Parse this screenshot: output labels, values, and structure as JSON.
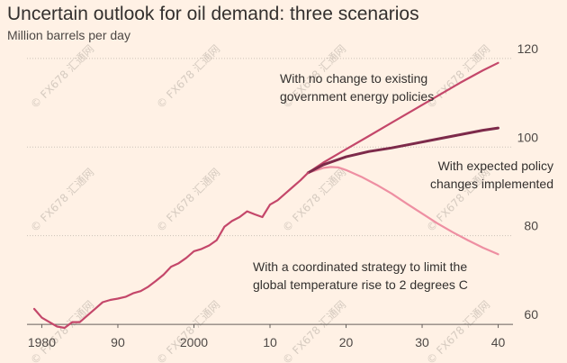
{
  "chart_data": {
    "type": "line",
    "title": "Uncertain outlook for oil demand: three scenarios",
    "ylabel": "Million barrels per day",
    "xlabel": "",
    "xlim": [
      1979,
      2041
    ],
    "ylim": [
      59,
      122
    ],
    "y_ticks": [
      {
        "value": 60,
        "label": "60"
      },
      {
        "value": 80,
        "label": "80"
      },
      {
        "value": 100,
        "label": "100"
      },
      {
        "value": 120,
        "label": "120"
      }
    ],
    "x_ticks": [
      {
        "value": 1980,
        "label": "1980"
      },
      {
        "value": 1990,
        "label": "90"
      },
      {
        "value": 2000,
        "label": "2000"
      },
      {
        "value": 2010,
        "label": "10"
      },
      {
        "value": 2020,
        "label": "20"
      },
      {
        "value": 2030,
        "label": "30"
      },
      {
        "value": 2040,
        "label": "40"
      }
    ],
    "grid": true,
    "series": [
      {
        "name": "",
        "color": "#c4476a",
        "x": [
          1979,
          1980,
          1981,
          1982,
          1983,
          1984,
          1985,
          1986,
          1987,
          1988,
          1989,
          1990,
          1991,
          1992,
          1993,
          1994,
          1995,
          1996,
          1997,
          1998,
          1999,
          2000,
          2001,
          2002,
          2003,
          2004,
          2005,
          2006,
          2007,
          2008,
          2009,
          2010,
          2011,
          2012,
          2013,
          2014,
          2015
        ],
        "y": [
          63.5,
          61.5,
          60.5,
          59.5,
          59.2,
          60.5,
          60.5,
          62,
          63.5,
          65,
          65.5,
          65.8,
          66.2,
          67,
          67.5,
          68.5,
          69.8,
          71.2,
          73,
          73.8,
          75,
          76.5,
          77,
          77.8,
          79,
          82,
          83.3,
          84.2,
          85.5,
          84.8,
          84.2,
          87,
          88,
          89.5,
          91,
          92.5,
          94.2
        ]
      },
      {
        "name": "",
        "color": "#c4476a",
        "x": [
          2015,
          2017,
          2020,
          2023,
          2026,
          2029,
          2032,
          2035,
          2038,
          2040
        ],
        "y": [
          94.2,
          96.5,
          99.5,
          102.5,
          105.5,
          108.5,
          111.5,
          114.5,
          117.3,
          119
        ]
      },
      {
        "name": "",
        "color": "#7d2a4a",
        "x": [
          2015,
          2017,
          2020,
          2023,
          2026,
          2029,
          2032,
          2035,
          2038,
          2040
        ],
        "y": [
          94.2,
          96,
          97.8,
          99,
          99.8,
          100.8,
          101.8,
          102.8,
          103.8,
          104.3
        ]
      },
      {
        "name": "",
        "color": "#ee8fa2",
        "x": [
          2015,
          2017,
          2018,
          2019,
          2020,
          2022,
          2024,
          2026,
          2028,
          2030,
          2032,
          2034,
          2036,
          2038,
          2040
        ],
        "y": [
          94.2,
          95.3,
          95.5,
          95.4,
          94.8,
          93.3,
          91.5,
          89.5,
          87.2,
          85,
          82.8,
          80.8,
          79,
          77.3,
          75.8
        ]
      }
    ],
    "annotations": [
      {
        "lines": [
          "With no change to existing",
          "government energy policies"
        ],
        "series_index": 1
      },
      {
        "lines": [
          "With expected policy",
          "changes implemented"
        ],
        "series_index": 2
      },
      {
        "lines": [
          "With a coordinated strategy to limit the",
          "global temperature rise to 2 degrees C"
        ],
        "series_index": 3
      }
    ],
    "watermark": "© FX678 汇通网"
  }
}
